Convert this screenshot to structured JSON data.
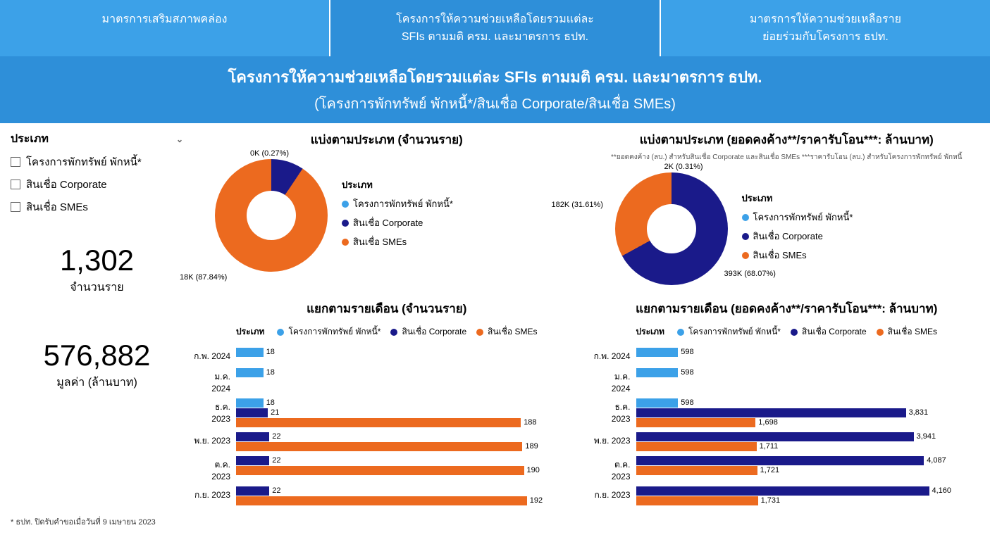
{
  "colors": {
    "tab_bg": "#3ca1e8",
    "tab_active": "#2e8fd9",
    "c1": "#3ca1e8",
    "c2": "#1a1a8a",
    "c3": "#ec6a1f"
  },
  "tabs": {
    "t0": "มาตรการเสริมสภาพคล่อง",
    "t1": "โครงการให้ความช่วยเหลือโดยรวมแต่ละ\nSFIs ตามมติ ครม. และมาตรการ ธปท.",
    "t2": "มาตรการให้ความช่วยเหลือราย\nย่อยร่วมกับโครงการ ธปท."
  },
  "title": {
    "line1": "โครงการให้ความช่วยเหลือโดยรวมแต่ละ SFIs ตามมติ ครม. และมาตรการ ธปท.",
    "line2": "(โครงการพักทรัพย์ พักหนี้*/สินเชื่อ Corporate/สินเชื่อ SMEs)"
  },
  "filter": {
    "header": "ประเภท",
    "i0": "โครงการพักทรัพย์ พักหนี้*",
    "i1": "สินเชื่อ Corporate",
    "i2": "สินเชื่อ SMEs"
  },
  "kpi": {
    "v1": "1,302",
    "l1": "จำนวนราย",
    "v2": "576,882",
    "l2": "มูลค่า (ล้านบาท)"
  },
  "footnote": "* ธปท. ปิดรับคำขอเมื่อวันที่ 9 เมษายน 2023",
  "donut1": {
    "title": "แบ่งตามประเภท (จำนวนราย)",
    "l_top": "0K (0.27%)",
    "l_bottom": "18K (87.84%)",
    "slices": [
      {
        "pct": 0.27,
        "color": "#3ca1e8"
      },
      {
        "pct": 11.89,
        "color": "#1a1a8a"
      },
      {
        "pct": 87.84,
        "color": "#ec6a1f"
      }
    ]
  },
  "donut2": {
    "title": "แบ่งตามประเภท (ยอดคงค้าง**/ราคารับโอน***: ล้านบาท)",
    "subtitle": "**ยอดคงค้าง (ลบ.) สำหรับสินเชื่อ Corporate และสินเชื่อ SMEs ***ราคารับโอน (ลบ.) สำหรับโครงการพักทรัพย์ พักหนี้",
    "l_top": "2K (0.31%)",
    "l_left": "182K (31.61%)",
    "l_right": "393K (68.07%)",
    "slices": [
      {
        "pct": 0.31,
        "color": "#3ca1e8"
      },
      {
        "pct": 68.07,
        "color": "#1a1a8a"
      },
      {
        "pct": 31.61,
        "color": "#ec6a1f"
      }
    ]
  },
  "legend": {
    "title": "ประเภท",
    "i0": "โครงการพักทรัพย์ พักหนี้*",
    "i1": "สินเชื่อ Corporate",
    "i2": "สินเชื่อ SMEs"
  },
  "bars1": {
    "title": "แยกตามรายเดือน (จำนวนราย)",
    "max": 200,
    "months": {
      "m0": {
        "label": "ก.พ. 2024",
        "s": [
          {
            "c": "c1",
            "v": 18
          }
        ]
      },
      "m1": {
        "label": "ม.ค. 2024",
        "s": [
          {
            "c": "c1",
            "v": 18
          }
        ]
      },
      "m2": {
        "label": "ธ.ค. 2023",
        "s": [
          {
            "c": "c1",
            "v": 18
          },
          {
            "c": "c2",
            "v": 21
          },
          {
            "c": "c3",
            "v": 188
          }
        ]
      },
      "m3": {
        "label": "พ.ย. 2023",
        "s": [
          {
            "c": "c2",
            "v": 22
          },
          {
            "c": "c3",
            "v": 189
          }
        ]
      },
      "m4": {
        "label": "ต.ค. 2023",
        "s": [
          {
            "c": "c2",
            "v": 22
          },
          {
            "c": "c3",
            "v": 190
          }
        ]
      },
      "m5": {
        "label": "ก.ย. 2023",
        "s": [
          {
            "c": "c2",
            "v": 22
          },
          {
            "c": "c3",
            "v": 192
          }
        ]
      }
    }
  },
  "bars2": {
    "title": "แยกตามรายเดือน (ยอดคงค้าง**/ราคารับโอน***: ล้านบาท)",
    "max": 4300,
    "months": {
      "m0": {
        "label": "ก.พ. 2024",
        "s": [
          {
            "c": "c1",
            "v": 598
          }
        ]
      },
      "m1": {
        "label": "ม.ค. 2024",
        "s": [
          {
            "c": "c1",
            "v": 598
          }
        ]
      },
      "m2": {
        "label": "ธ.ค. 2023",
        "s": [
          {
            "c": "c1",
            "v": 598
          },
          {
            "c": "c2",
            "v": 3831,
            "d": "3,831"
          },
          {
            "c": "c3",
            "v": 1698,
            "d": "1,698"
          }
        ]
      },
      "m3": {
        "label": "พ.ย. 2023",
        "s": [
          {
            "c": "c2",
            "v": 3941,
            "d": "3,941"
          },
          {
            "c": "c3",
            "v": 1711,
            "d": "1,711"
          }
        ]
      },
      "m4": {
        "label": "ต.ค. 2023",
        "s": [
          {
            "c": "c2",
            "v": 4087,
            "d": "4,087"
          },
          {
            "c": "c3",
            "v": 1721,
            "d": "1,721"
          }
        ]
      },
      "m5": {
        "label": "ก.ย. 2023",
        "s": [
          {
            "c": "c2",
            "v": 4160,
            "d": "4,160"
          },
          {
            "c": "c3",
            "v": 1731,
            "d": "1,731"
          }
        ]
      }
    }
  }
}
